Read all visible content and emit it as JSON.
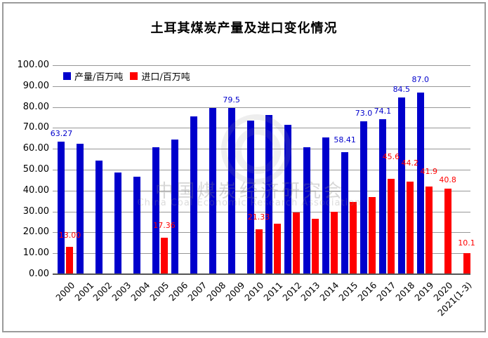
{
  "title": "土耳其煤炭产量及进口变化情况",
  "y_axis": {
    "tick_labels": [
      "100.00",
      "90.00",
      "80.00",
      "70.00",
      "60.00",
      "50.00",
      "40.00",
      "30.00",
      "20.00",
      "10.00",
      "0.00"
    ]
  },
  "watermark": {
    "line1": "中国煤炭经济研究会",
    "line2": "China Coal Economic Research Association",
    "logo": "concentric-rings"
  },
  "chart_data": {
    "type": "bar",
    "title": "土耳其煤炭产量及进口变化情况",
    "categories": [
      "2000",
      "2001",
      "2002",
      "2003",
      "2004",
      "2005",
      "2006",
      "2007",
      "2008",
      "2009",
      "2010",
      "2011",
      "2012",
      "2013",
      "2014",
      "2015",
      "2016",
      "2017",
      "2018",
      "2019",
      "2020",
      "2021(1-3)"
    ],
    "series": [
      {
        "name": "产量/百万吨",
        "color": "#0000CC",
        "values": [
          63.27,
          62.4,
          54.2,
          48.8,
          46.5,
          60.9,
          64.5,
          75.6,
          79.5,
          79.5,
          73.5,
          76.1,
          71.5,
          60.8,
          65.5,
          58.41,
          73.0,
          74.1,
          84.5,
          87.0,
          null,
          null
        ],
        "value_labels": [
          {
            "i": 0,
            "text": "63.27",
            "dy": 0
          },
          {
            "i": 9,
            "text": "79.5",
            "dy": 0
          },
          {
            "i": 15,
            "text": "58.41",
            "dy": -6
          },
          {
            "i": 16,
            "text": "73.0",
            "dy": 0
          },
          {
            "i": 17,
            "text": "74.1",
            "dy": 0
          },
          {
            "i": 18,
            "text": "84.5",
            "dy": 0
          },
          {
            "i": 19,
            "text": "87.0",
            "dy": -7
          }
        ]
      },
      {
        "name": "进口/百万吨",
        "color": "#FF0000",
        "values": [
          13.0,
          null,
          null,
          null,
          null,
          17.36,
          null,
          null,
          null,
          null,
          21.33,
          24.3,
          29.4,
          26.4,
          29.8,
          34.5,
          36.9,
          45.6,
          44.2,
          41.9,
          40.8,
          10.1
        ],
        "value_labels": [
          {
            "i": 0,
            "text": "13.00",
            "dy": -5
          },
          {
            "i": 5,
            "text": "17.36",
            "dy": -6
          },
          {
            "i": 10,
            "text": "21.33",
            "dy": -6
          },
          {
            "i": 17,
            "text": "45.6",
            "dy": -20
          },
          {
            "i": 18,
            "text": "44.2",
            "dy": -15
          },
          {
            "i": 19,
            "text": "41.9",
            "dy": -10
          },
          {
            "i": 20,
            "text": "40.8",
            "dy": -1
          },
          {
            "i": 21,
            "text": "10.1",
            "dy": -3
          }
        ]
      }
    ],
    "ylim": [
      0,
      100
    ],
    "y_step": 10,
    "grid": true,
    "legend_position": "top-left-inside",
    "bar_layout": "grouped"
  }
}
